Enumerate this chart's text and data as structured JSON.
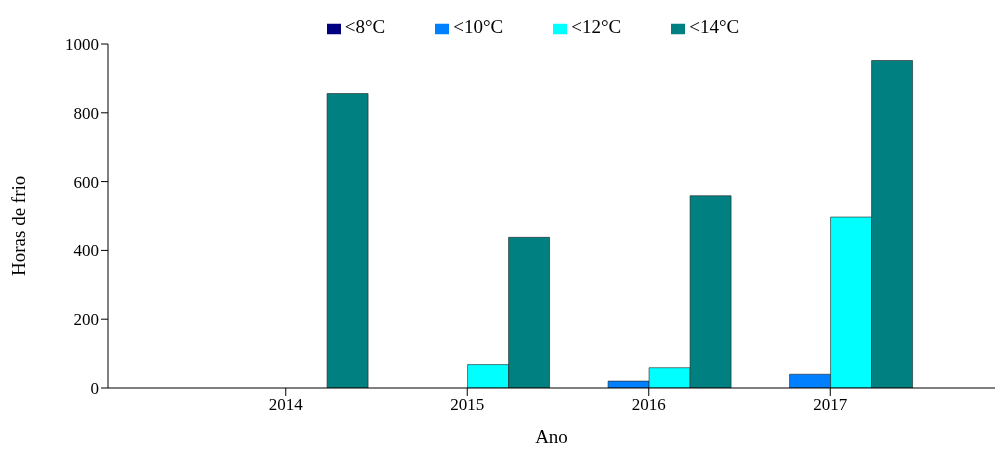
{
  "chart_data": {
    "type": "bar",
    "xlabel": "Ano",
    "ylabel": "Horas de frio",
    "categories": [
      "2014",
      "2015",
      "2016",
      "2017"
    ],
    "series": [
      {
        "name": "<8°C",
        "color": "#000080",
        "values": [
          0,
          0,
          0,
          0
        ]
      },
      {
        "name": "<10°C",
        "color": "#0080ff",
        "values": [
          0,
          0,
          20,
          40
        ]
      },
      {
        "name": "<12°C",
        "color": "#00ffff",
        "values": [
          0,
          68,
          59,
          497
        ]
      },
      {
        "name": "<14°C",
        "color": "#008080",
        "values": [
          856,
          438,
          559,
          952
        ]
      }
    ],
    "ylim": [
      0,
      1000
    ],
    "yticks": [
      0,
      200,
      400,
      600,
      800,
      1000
    ],
    "grid": false,
    "legend": "top"
  }
}
